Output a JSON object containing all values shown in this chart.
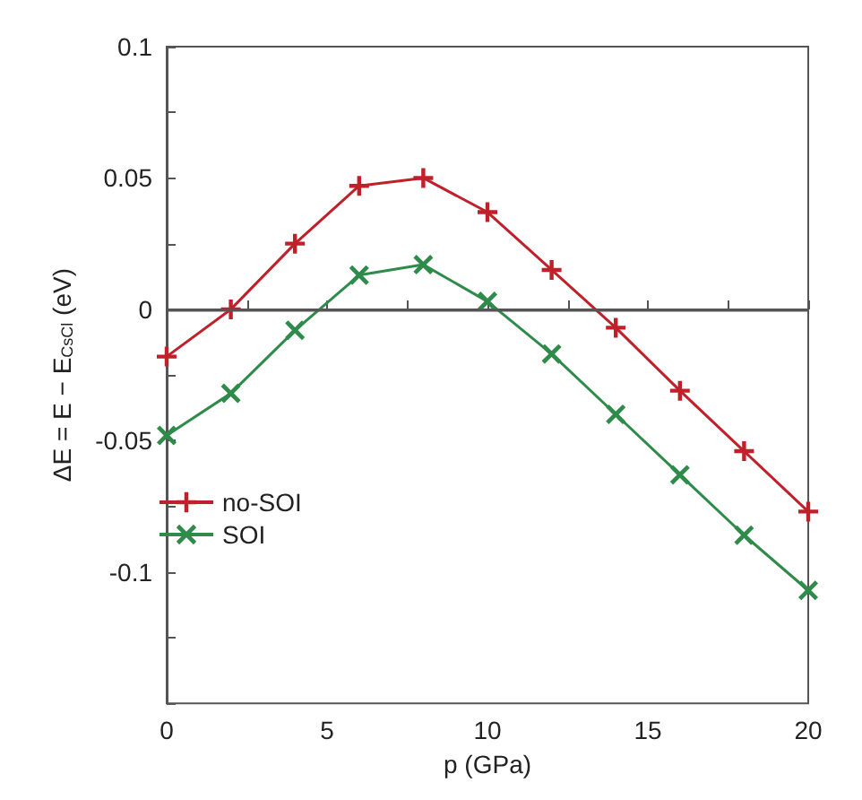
{
  "chart_data": {
    "type": "line",
    "xlabel": "p (GPa)",
    "ylabel": "ΔE = E − E$_{CsCl}$ (eV)",
    "x": [
      0,
      2,
      4,
      6,
      8,
      10,
      12,
      14,
      16,
      18,
      20
    ],
    "series": [
      {
        "name": "no-SOI",
        "color": "#c0202a",
        "marker": "plus",
        "values": [
          -0.018,
          0.0,
          0.025,
          0.047,
          0.05,
          0.037,
          0.015,
          -0.007,
          -0.031,
          -0.054,
          -0.077
        ]
      },
      {
        "name": "SOI",
        "color": "#2e8b4a",
        "marker": "cross",
        "values": [
          -0.048,
          -0.032,
          -0.008,
          0.013,
          0.017,
          0.003,
          -0.017,
          -0.04,
          -0.063,
          -0.086,
          -0.107
        ]
      }
    ],
    "xlim": [
      0,
      20
    ],
    "ylim": [
      -0.15,
      0.1
    ],
    "xticks": [
      0,
      {
        "value": 2.5,
        "label": null
      },
      5,
      {
        "value": 7.5,
        "label": null
      },
      10,
      {
        "value": 12.5,
        "label": null
      },
      15,
      {
        "value": 17.5,
        "label": null
      },
      20
    ],
    "yticks": [
      {
        "value": -0.15,
        "label": null
      },
      {
        "value": -0.125,
        "label": null
      },
      -0.1,
      {
        "value": -0.075,
        "label": null
      },
      -0.05,
      {
        "value": -0.025,
        "label": null
      },
      0,
      {
        "value": 0.025,
        "label": null
      },
      0.05,
      {
        "value": 0.075,
        "label": null
      },
      0.1
    ],
    "ref_lines": [
      {
        "axis": "y",
        "value": 0,
        "color": "#555555"
      }
    ],
    "legend": "left",
    "grid": false,
    "line_style": "solid"
  }
}
